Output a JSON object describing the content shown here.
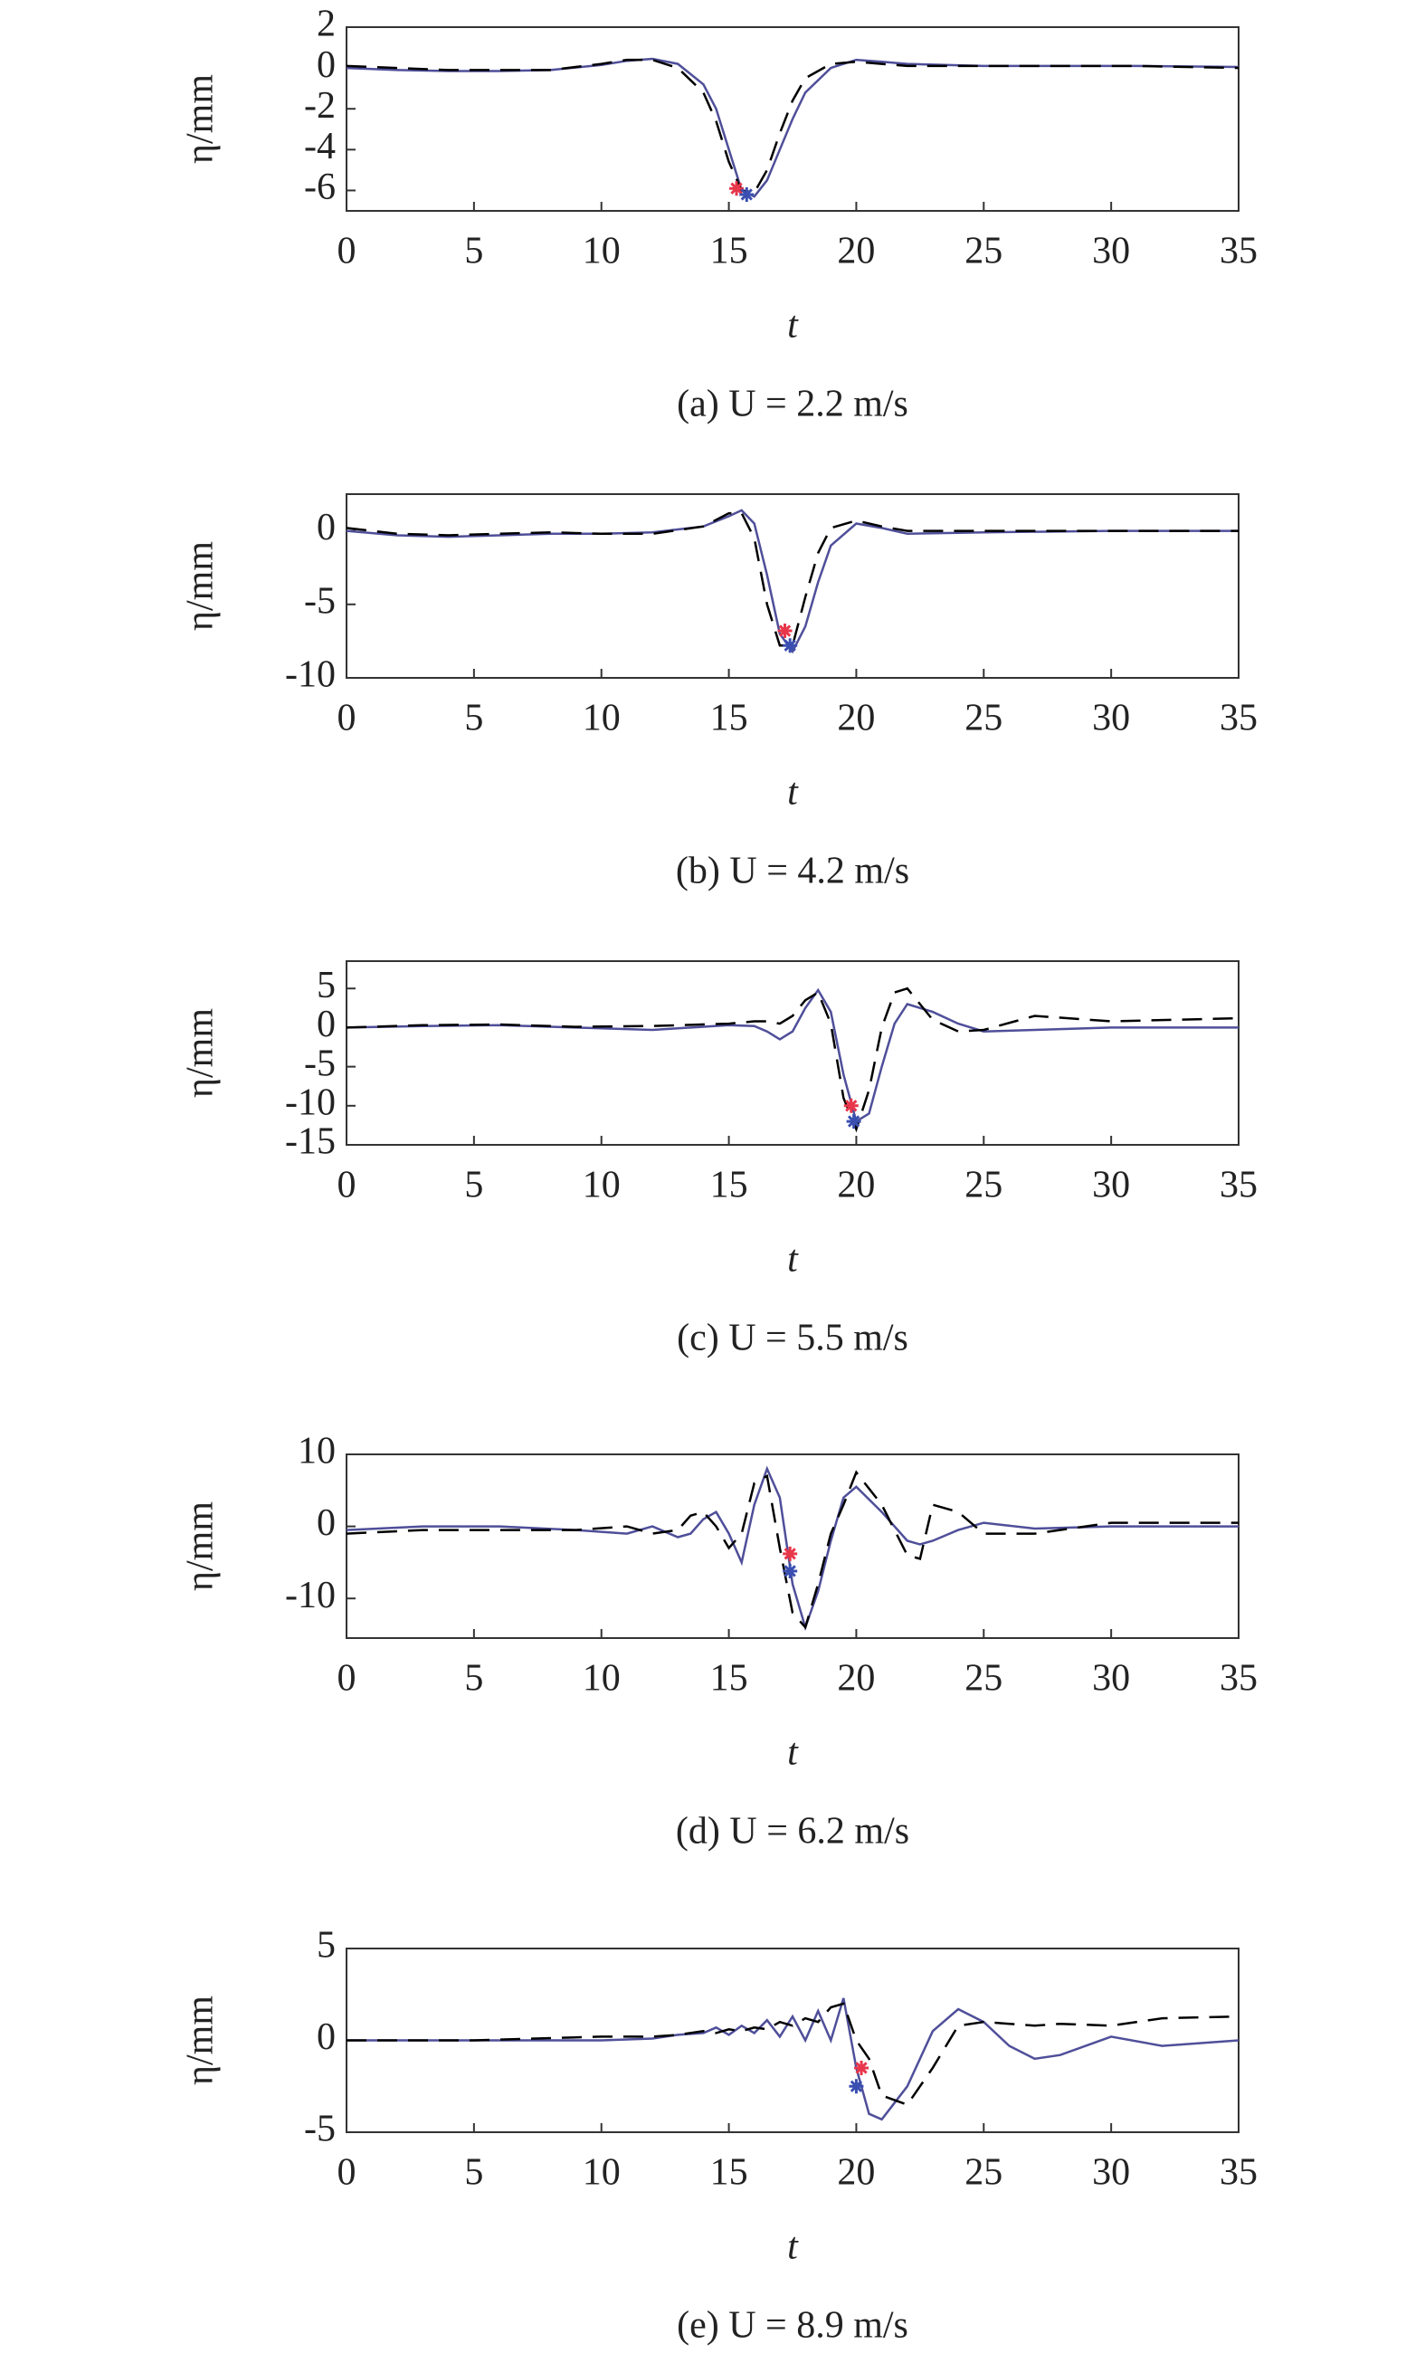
{
  "chart_data": [
    {
      "type": "line",
      "caption": "(a) U = 2.2 m/s",
      "xlabel": "t",
      "ylabel": "η/mm",
      "xlim": [
        0,
        35
      ],
      "xticks": [
        0,
        5,
        10,
        15,
        20,
        25,
        30,
        35
      ],
      "ylim": [
        -7,
        2
      ],
      "yticks": [
        2,
        0,
        -2,
        -4,
        -6
      ],
      "series": [
        {
          "color": "#4f4f9a",
          "line_style": "solid",
          "x": [
            0,
            2,
            4,
            6,
            8,
            10,
            11,
            12,
            13,
            14,
            14.5,
            15,
            15.5,
            16,
            16.5,
            17,
            17.5,
            18,
            19,
            20,
            21,
            22,
            25,
            28,
            31,
            35
          ],
          "values": [
            0,
            -0.1,
            -0.15,
            -0.15,
            -0.1,
            0.15,
            0.35,
            0.45,
            0.2,
            -0.8,
            -2,
            -4,
            -6,
            -6.3,
            -5.5,
            -4,
            -2.5,
            -1.2,
            0,
            0.4,
            0.3,
            0.2,
            0.1,
            0.1,
            0.1,
            0.05
          ]
        },
        {
          "color": "#000000",
          "line_style": "dashed",
          "x": [
            0,
            2,
            4,
            6,
            8,
            10,
            11,
            12,
            13,
            14,
            14.5,
            15,
            15.5,
            16,
            16.5,
            17,
            17.5,
            18,
            19,
            20,
            21,
            22,
            25,
            28,
            31,
            35
          ],
          "values": [
            0.1,
            0,
            -0.1,
            -0.1,
            -0.1,
            0.2,
            0.4,
            0.4,
            0,
            -1.2,
            -2.6,
            -4.6,
            -6,
            -6.1,
            -5,
            -3.2,
            -1.6,
            -0.5,
            0.2,
            0.3,
            0.2,
            0.1,
            0.1,
            0.1,
            0.1,
            0
          ]
        }
      ],
      "markers": [
        {
          "color": "#e8364a",
          "x": 15.3,
          "y": -5.9
        },
        {
          "color": "#3a4fb0",
          "x": 15.7,
          "y": -6.2
        }
      ]
    },
    {
      "type": "line",
      "caption": "(b) U = 4.2 m/s",
      "xlabel": "t",
      "ylabel": "η/mm",
      "xlim": [
        0,
        35
      ],
      "xticks": [
        0,
        5,
        10,
        15,
        20,
        25,
        30,
        35
      ],
      "ylim": [
        -10,
        2.5
      ],
      "yticks": [
        0,
        -5,
        -10
      ],
      "series": [
        {
          "color": "#4f4f9a",
          "line_style": "solid",
          "x": [
            0,
            2,
            4,
            6,
            8,
            10,
            12,
            14,
            15,
            15.5,
            16,
            16.5,
            17,
            17.5,
            18,
            18.5,
            19,
            20,
            21,
            22,
            25,
            30,
            35
          ],
          "values": [
            0,
            -0.3,
            -0.4,
            -0.3,
            -0.2,
            -0.2,
            -0.1,
            0.3,
            1,
            1.4,
            0.5,
            -3,
            -7,
            -8.2,
            -6.5,
            -3.5,
            -1,
            0.5,
            0.2,
            -0.2,
            -0.1,
            0,
            0
          ]
        },
        {
          "color": "#000000",
          "line_style": "dashed",
          "x": [
            0,
            2,
            4,
            6,
            8,
            10,
            12,
            14,
            15,
            15.5,
            16,
            16.5,
            17,
            17.5,
            18,
            18.5,
            19,
            20,
            21,
            22,
            25,
            30,
            35
          ],
          "values": [
            0.2,
            -0.2,
            -0.3,
            -0.2,
            -0.1,
            -0.2,
            -0.2,
            0.3,
            1.2,
            1.2,
            -0.5,
            -5,
            -7.8,
            -7.8,
            -4.5,
            -1.5,
            0.2,
            0.7,
            0.3,
            0,
            0,
            0,
            0
          ]
        }
      ],
      "markers": [
        {
          "color": "#e8364a",
          "x": 17.2,
          "y": -6.8
        },
        {
          "color": "#3a4fb0",
          "x": 17.4,
          "y": -7.8
        }
      ]
    },
    {
      "type": "line",
      "caption": "(c) U = 5.5 m/s",
      "xlabel": "t",
      "ylabel": "η/mm",
      "xlim": [
        0,
        35
      ],
      "xticks": [
        0,
        5,
        10,
        15,
        20,
        25,
        30,
        35
      ],
      "ylim": [
        -15,
        8.5
      ],
      "yticks": [
        5,
        0,
        -5,
        -10,
        -15
      ],
      "series": [
        {
          "color": "#4f4f9a",
          "line_style": "solid",
          "x": [
            0,
            3,
            6,
            9,
            12,
            15,
            16,
            16.5,
            17,
            17.5,
            18,
            18.5,
            19,
            19.5,
            20,
            20.5,
            21,
            21.5,
            22,
            23,
            24,
            25,
            27,
            30,
            35
          ],
          "values": [
            0,
            0.2,
            0.3,
            0,
            -0.3,
            0.3,
            0.2,
            -0.5,
            -1.5,
            -0.5,
            2.5,
            4.8,
            2,
            -6,
            -12,
            -11,
            -5,
            0.5,
            3,
            2,
            0.5,
            -0.5,
            -0.3,
            0,
            0
          ]
        },
        {
          "color": "#000000",
          "line_style": "dashed",
          "x": [
            0,
            3,
            6,
            9,
            12,
            15,
            16,
            16.5,
            17,
            17.5,
            18,
            18.5,
            19,
            19.5,
            20,
            20.5,
            21,
            21.5,
            22,
            23,
            24,
            25,
            27,
            30,
            35
          ],
          "values": [
            0,
            0.3,
            0.4,
            0.1,
            0.2,
            0.5,
            0.8,
            0.8,
            0.5,
            1.5,
            3.5,
            4.5,
            0.5,
            -9,
            -13,
            -8,
            0,
            4.5,
            5,
            1,
            -0.5,
            -0.3,
            1.5,
            0.8,
            1.2
          ]
        }
      ],
      "markers": [
        {
          "color": "#e8364a",
          "x": 19.8,
          "y": -10
        },
        {
          "color": "#3a4fb0",
          "x": 19.9,
          "y": -12
        }
      ]
    },
    {
      "type": "line",
      "caption": "(d) U = 6.2 m/s",
      "xlabel": "t",
      "ylabel": "η/mm",
      "xlim": [
        0,
        35
      ],
      "xticks": [
        0,
        5,
        10,
        15,
        20,
        25,
        30,
        35
      ],
      "ylim": [
        -15.5,
        10
      ],
      "yticks": [
        10,
        0,
        -10
      ],
      "series": [
        {
          "color": "#4f4f9a",
          "line_style": "solid",
          "x": [
            0,
            3,
            6,
            9,
            11,
            12,
            13,
            13.5,
            14,
            14.5,
            15,
            15.5,
            16,
            16.5,
            17,
            17.5,
            18,
            18.5,
            19,
            19.5,
            20,
            21,
            22,
            22.5,
            23,
            24,
            25,
            27,
            30,
            35
          ],
          "values": [
            -0.5,
            0,
            0,
            -0.5,
            -1,
            0,
            -1.5,
            -1,
            1,
            2,
            -1,
            -5,
            3,
            8,
            4,
            -8,
            -14,
            -9,
            -2,
            4,
            5.5,
            2,
            -2,
            -2.5,
            -2,
            -0.5,
            0.5,
            -0.3,
            0,
            0
          ]
        },
        {
          "color": "#000000",
          "line_style": "dashed",
          "x": [
            0,
            3,
            6,
            9,
            11,
            12,
            13,
            13.5,
            14,
            14.5,
            15,
            15.5,
            16,
            16.5,
            17,
            17.5,
            18,
            18.5,
            19,
            19.5,
            20,
            21,
            22,
            22.5,
            23,
            24,
            25,
            27,
            30,
            35
          ],
          "values": [
            -1,
            -0.5,
            -0.5,
            -0.5,
            0,
            -1,
            -0.5,
            1.5,
            2,
            0,
            -3,
            -1,
            6,
            7,
            -3,
            -12,
            -14,
            -8,
            -1,
            3,
            7.5,
            3,
            -4,
            -4.5,
            3,
            2,
            -1,
            -1,
            0.5,
            0.5
          ]
        }
      ],
      "markers": [
        {
          "color": "#e8364a",
          "x": 17.4,
          "y": -3.8
        },
        {
          "color": "#3a4fb0",
          "x": 17.4,
          "y": -6.2
        }
      ]
    },
    {
      "type": "line",
      "caption": "(e) U = 8.9 m/s",
      "xlabel": "t",
      "ylabel": "η/mm",
      "xlim": [
        0,
        35
      ],
      "xticks": [
        0,
        5,
        10,
        15,
        20,
        25,
        30,
        35
      ],
      "ylim": [
        -5,
        5
      ],
      "yticks": [
        5,
        0,
        -5
      ],
      "series": [
        {
          "color": "#4f4f9a",
          "line_style": "solid",
          "x": [
            0,
            5,
            10,
            12,
            13,
            14,
            14.5,
            15,
            15.5,
            16,
            16.5,
            17,
            17.5,
            18,
            18.5,
            19,
            19.5,
            20,
            20.5,
            21,
            22,
            23,
            24,
            25,
            26,
            27,
            28,
            30,
            32,
            35
          ],
          "values": [
            0,
            0,
            0,
            0.1,
            0.3,
            0.4,
            0.7,
            0.3,
            0.8,
            0.4,
            1.1,
            0.2,
            1.3,
            0,
            1.6,
            0,
            2.3,
            -1.5,
            -4,
            -4.3,
            -2.5,
            0.5,
            1.7,
            1,
            -0.3,
            -1,
            -0.8,
            0.2,
            -0.3,
            0
          ]
        },
        {
          "color": "#000000",
          "line_style": "dashed",
          "x": [
            0,
            5,
            10,
            12,
            13,
            14,
            14.5,
            15,
            15.5,
            16,
            16.5,
            17,
            17.5,
            18,
            18.5,
            19,
            19.5,
            20,
            20.5,
            21,
            22,
            23,
            24,
            25,
            26,
            27,
            28,
            30,
            32,
            35
          ],
          "values": [
            0,
            0,
            0.2,
            0.2,
            0.3,
            0.5,
            0.4,
            0.6,
            0.5,
            0.7,
            0.6,
            1,
            0.8,
            1.2,
            1,
            1.8,
            2,
            0,
            -1,
            -3,
            -3.5,
            -1.5,
            0.8,
            1,
            0.9,
            0.8,
            0.9,
            0.8,
            1.2,
            1.3
          ]
        }
      ],
      "markers": [
        {
          "color": "#e8364a",
          "x": 20.2,
          "y": -1.5
        },
        {
          "color": "#3a4fb0",
          "x": 20,
          "y": -2.5
        }
      ]
    }
  ]
}
